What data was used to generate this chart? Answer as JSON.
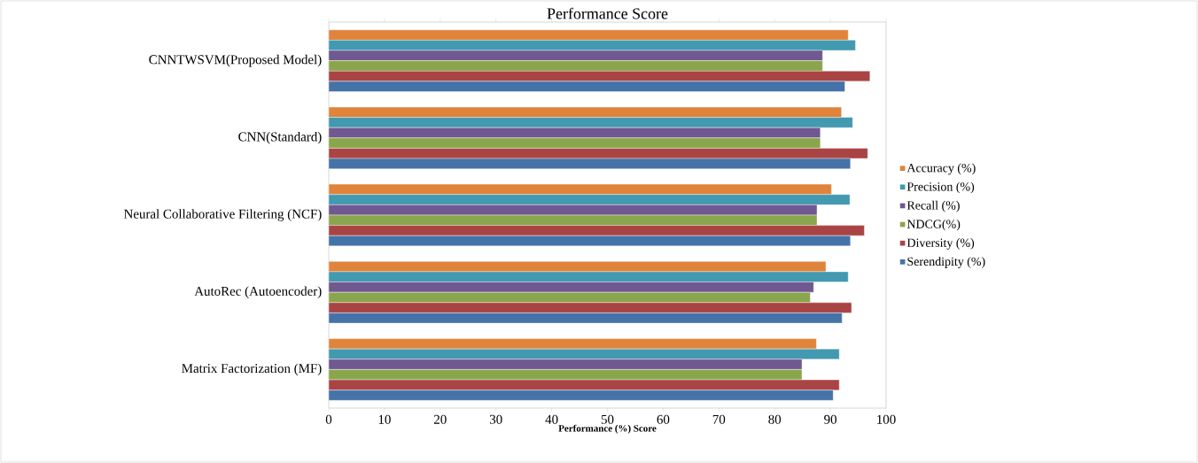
{
  "chart_data": {
    "type": "bar",
    "orientation": "horizontal",
    "title": "Performance Score",
    "xlabel": "Performance (%)  Score",
    "categories": [
      "CNNTWSVM(Proposed Model)",
      "CNN(Standard)",
      "Neural Collaborative Filtering (NCF)",
      "AutoRec (Autoencoder)",
      "Matrix Factorization (MF)"
    ],
    "series": [
      {
        "name": "Accuracy (%)",
        "color": "#e0843c",
        "values": [
          93.2,
          92.0,
          90.2,
          89.2,
          87.5
        ]
      },
      {
        "name": "Precision (%)",
        "color": "#4299b0",
        "values": [
          94.5,
          94.0,
          93.5,
          93.2,
          91.6
        ]
      },
      {
        "name": "Recall (%)",
        "color": "#705890",
        "values": [
          88.6,
          88.2,
          87.6,
          87.0,
          84.9
        ]
      },
      {
        "name": "NDCG(%)",
        "color": "#8aa64c",
        "values": [
          88.6,
          88.2,
          87.6,
          86.4,
          84.9
        ]
      },
      {
        "name": "Diversity (%)",
        "color": "#aa4444",
        "values": [
          97.1,
          96.7,
          96.1,
          93.8,
          91.6
        ]
      },
      {
        "name": "Serendipity (%)",
        "color": "#4573a8",
        "values": [
          92.6,
          93.6,
          93.6,
          92.1,
          90.5
        ]
      }
    ],
    "xlim": [
      0,
      100
    ],
    "xticks": [
      0,
      10,
      20,
      30,
      40,
      50,
      60,
      70,
      80,
      90,
      100
    ],
    "legend": "right"
  }
}
